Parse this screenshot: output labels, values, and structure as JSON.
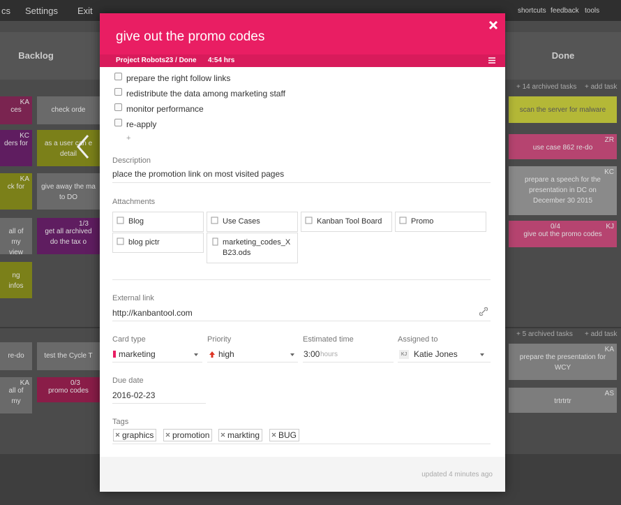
{
  "topbar": {
    "left": [
      "cs",
      "Settings",
      "Exit"
    ],
    "right": [
      "shortcuts",
      "feedback",
      "tools"
    ]
  },
  "board": {
    "columns": [
      "Backlog",
      "Done"
    ],
    "cards": [
      {
        "badge": "KA",
        "text": "ces"
      },
      {
        "badge": "KC",
        "text": "ders for"
      },
      {
        "badge": "KA",
        "text": "ck for"
      },
      {
        "text": "all of my view"
      },
      {
        "text": "ng infos"
      },
      {
        "text": "check orde"
      },
      {
        "text": "as a user can e detail"
      },
      {
        "text": "give away the ma to DO"
      },
      {
        "counter": "1/3",
        "text": "get all archived do the tax o"
      },
      {
        "text": "re-do"
      },
      {
        "badge": "KA",
        "text": "all of my"
      },
      {
        "text": "test the Cycle T"
      },
      {
        "counter": "0/3",
        "text": "promo codes"
      },
      {
        "text": "scan the server for malware"
      },
      {
        "badge": "ZR",
        "text": "use case 862 re-do"
      },
      {
        "badge": "KC",
        "text": "prepare a speech for the presentation in DC on December 30 2015"
      },
      {
        "counter": "0/4",
        "badge": "KJ",
        "text": "give out the promo codes"
      },
      {
        "badge": "KA",
        "text": "prepare the presentation for WCY"
      },
      {
        "badge": "AS",
        "text": "trtrtrtr"
      }
    ],
    "archived": [
      "+ 14 archived tasks",
      "+ 5 archived tasks"
    ],
    "add_task": [
      "+ add task",
      "+ add task"
    ]
  },
  "modal": {
    "title": "give out the promo codes",
    "breadcrumb": "Project Robots23 / Done",
    "time": "4:54 hrs",
    "checklist": [
      "prepare the right follow links",
      "redistribute the data among marketing staff",
      "monitor performance",
      "re-apply"
    ],
    "add_item": "+",
    "description": {
      "label": "Description",
      "value": "place the promotion link on most visited pages"
    },
    "attachments": {
      "label": "Attachments",
      "items": [
        "Blog",
        "Use Cases",
        "Kanban Tool Board",
        "Promo",
        "blog pictr",
        "marketing_codes_XB23.ods"
      ]
    },
    "external_link": {
      "label": "External link",
      "value": "http://kanbantool.com"
    },
    "card_type": {
      "label": "Card type",
      "value": "marketing"
    },
    "priority": {
      "label": "Priority",
      "value": "high"
    },
    "estimated_time": {
      "label": "Estimated time",
      "value": "3:00",
      "unit": "hours"
    },
    "assigned_to": {
      "label": "Assigned to",
      "initials": "KJ",
      "value": "Katie Jones"
    },
    "due_date": {
      "label": "Due date",
      "value": "2016-02-23"
    },
    "tags": {
      "label": "Tags",
      "items": [
        "graphics",
        "promotion",
        "markting",
        "BUG"
      ]
    },
    "footer": "updated 4 minutes ago"
  }
}
